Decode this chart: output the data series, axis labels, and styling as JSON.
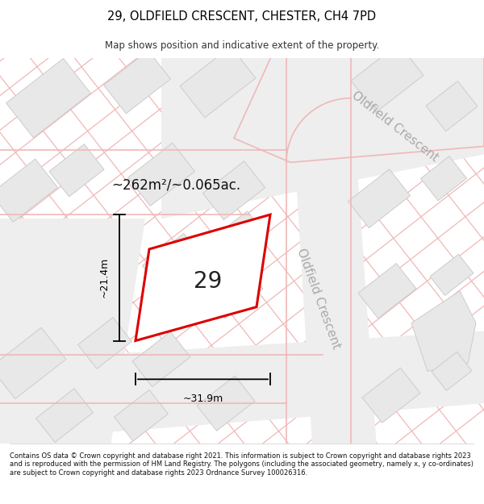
{
  "title": "29, OLDFIELD CRESCENT, CHESTER, CH4 7PD",
  "subtitle": "Map shows position and indicative extent of the property.",
  "footer": "Contains OS data © Crown copyright and database right 2021. This information is subject to Crown copyright and database rights 2023 and is reproduced with the permission of HM Land Registry. The polygons (including the associated geometry, namely x, y co-ordinates) are subject to Crown copyright and database rights 2023 Ordnance Survey 100026316.",
  "area_text": "~262m²/~0.065ac.",
  "house_number": "29",
  "dim_width": "~31.9m",
  "dim_height": "~21.4m",
  "map_bg": "#f7f7f7",
  "road_fill": "#f0f0f0",
  "building_fill": "#e8e8e8",
  "building_edge": "#cccccc",
  "road_line_color": "#f0b8b8",
  "road_line_color2": "#f0b8b8",
  "plot_outline_color": "#dd0000",
  "title_color": "#000000",
  "footer_color": "#111111",
  "street_label_color": "#aaaaaa",
  "oldfield_crescent_label1": "Oldfield Crescent",
  "oldfield_crescent_label2": "Oldfield Crescent"
}
